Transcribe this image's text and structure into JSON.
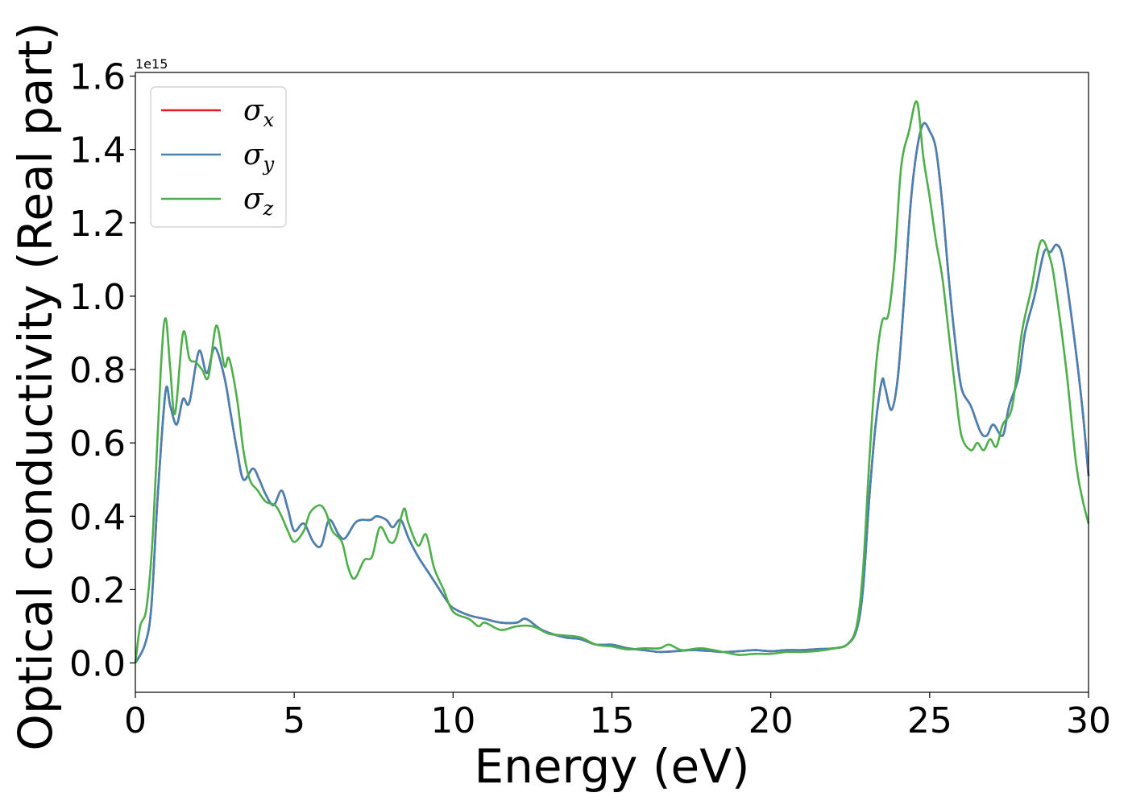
{
  "chart_data": {
    "type": "line",
    "xlabel": "Energy (eV)",
    "ylabel": "Optical conductivity (Real part)",
    "y_offset_label": "1e15",
    "xlim": [
      0,
      30
    ],
    "ylim": [
      -0.08,
      1.61
    ],
    "x_ticks": [
      0,
      5,
      10,
      15,
      20,
      25,
      30
    ],
    "x_tick_labels": [
      "0",
      "5",
      "10",
      "15",
      "20",
      "25",
      "30"
    ],
    "y_ticks": [
      0.0,
      0.2,
      0.4,
      0.6,
      0.8,
      1.0,
      1.2,
      1.4,
      1.6
    ],
    "y_tick_labels": [
      "0.0",
      "0.2",
      "0.4",
      "0.6",
      "0.8",
      "1.0",
      "1.2",
      "1.4",
      "1.6"
    ],
    "grid": false,
    "legend_position": "top-left",
    "series": [
      {
        "name": "σx",
        "legend_base": "σ",
        "legend_sub": "x",
        "color": "#e41a1c",
        "points": [
          [
            0,
            0.0
          ],
          [
            0.3,
            0.05
          ],
          [
            0.5,
            0.15
          ],
          [
            0.7,
            0.45
          ],
          [
            0.95,
            0.74
          ],
          [
            1.1,
            0.7
          ],
          [
            1.3,
            0.65
          ],
          [
            1.5,
            0.72
          ],
          [
            1.7,
            0.71
          ],
          [
            2.0,
            0.85
          ],
          [
            2.25,
            0.79
          ],
          [
            2.5,
            0.86
          ],
          [
            2.8,
            0.78
          ],
          [
            3.0,
            0.68
          ],
          [
            3.2,
            0.58
          ],
          [
            3.4,
            0.5
          ],
          [
            3.7,
            0.53
          ],
          [
            3.9,
            0.5
          ],
          [
            4.1,
            0.46
          ],
          [
            4.35,
            0.43
          ],
          [
            4.6,
            0.47
          ],
          [
            4.8,
            0.42
          ],
          [
            5.0,
            0.36
          ],
          [
            5.3,
            0.38
          ],
          [
            5.6,
            0.33
          ],
          [
            5.85,
            0.32
          ],
          [
            6.1,
            0.39
          ],
          [
            6.4,
            0.35
          ],
          [
            6.6,
            0.34
          ],
          [
            6.9,
            0.38
          ],
          [
            7.1,
            0.39
          ],
          [
            7.4,
            0.39
          ],
          [
            7.6,
            0.4
          ],
          [
            7.9,
            0.39
          ],
          [
            8.1,
            0.37
          ],
          [
            8.35,
            0.39
          ],
          [
            8.6,
            0.34
          ],
          [
            8.9,
            0.29
          ],
          [
            9.2,
            0.25
          ],
          [
            9.5,
            0.21
          ],
          [
            9.8,
            0.17
          ],
          [
            10.0,
            0.15
          ],
          [
            10.5,
            0.13
          ],
          [
            11.0,
            0.12
          ],
          [
            11.5,
            0.11
          ],
          [
            12.0,
            0.11
          ],
          [
            12.3,
            0.12
          ],
          [
            12.8,
            0.09
          ],
          [
            13.5,
            0.07
          ],
          [
            14.0,
            0.065
          ],
          [
            14.5,
            0.05
          ],
          [
            15.0,
            0.05
          ],
          [
            15.5,
            0.04
          ],
          [
            16.0,
            0.035
          ],
          [
            16.5,
            0.03
          ],
          [
            17.0,
            0.032
          ],
          [
            17.5,
            0.035
          ],
          [
            18.0,
            0.033
          ],
          [
            18.5,
            0.03
          ],
          [
            19.0,
            0.032
          ],
          [
            19.5,
            0.035
          ],
          [
            20.0,
            0.032
          ],
          [
            20.5,
            0.035
          ],
          [
            21.0,
            0.035
          ],
          [
            21.5,
            0.038
          ],
          [
            22.0,
            0.04
          ],
          [
            22.4,
            0.05
          ],
          [
            22.7,
            0.09
          ],
          [
            22.9,
            0.2
          ],
          [
            23.1,
            0.45
          ],
          [
            23.3,
            0.65
          ],
          [
            23.5,
            0.77
          ],
          [
            23.6,
            0.75
          ],
          [
            23.8,
            0.69
          ],
          [
            24.0,
            0.78
          ],
          [
            24.2,
            1.0
          ],
          [
            24.4,
            1.25
          ],
          [
            24.6,
            1.4
          ],
          [
            24.8,
            1.47
          ],
          [
            25.0,
            1.45
          ],
          [
            25.2,
            1.4
          ],
          [
            25.4,
            1.25
          ],
          [
            25.6,
            1.05
          ],
          [
            25.8,
            0.88
          ],
          [
            26.0,
            0.75
          ],
          [
            26.3,
            0.7
          ],
          [
            26.6,
            0.63
          ],
          [
            26.8,
            0.62
          ],
          [
            27.0,
            0.65
          ],
          [
            27.3,
            0.62
          ],
          [
            27.5,
            0.7
          ],
          [
            27.8,
            0.78
          ],
          [
            28.0,
            0.9
          ],
          [
            28.3,
            1.0
          ],
          [
            28.6,
            1.12
          ],
          [
            28.8,
            1.12
          ],
          [
            29.0,
            1.14
          ],
          [
            29.2,
            1.1
          ],
          [
            29.5,
            0.92
          ],
          [
            29.8,
            0.7
          ],
          [
            30.0,
            0.51
          ]
        ]
      },
      {
        "name": "σy",
        "legend_base": "σ",
        "legend_sub": "y",
        "color": "#4682b4",
        "points": [
          [
            0,
            0.0
          ],
          [
            0.3,
            0.05
          ],
          [
            0.5,
            0.15
          ],
          [
            0.7,
            0.45
          ],
          [
            0.95,
            0.74
          ],
          [
            1.1,
            0.7
          ],
          [
            1.3,
            0.65
          ],
          [
            1.5,
            0.72
          ],
          [
            1.7,
            0.71
          ],
          [
            2.0,
            0.85
          ],
          [
            2.25,
            0.79
          ],
          [
            2.5,
            0.86
          ],
          [
            2.8,
            0.78
          ],
          [
            3.0,
            0.68
          ],
          [
            3.2,
            0.58
          ],
          [
            3.4,
            0.5
          ],
          [
            3.7,
            0.53
          ],
          [
            3.9,
            0.5
          ],
          [
            4.1,
            0.46
          ],
          [
            4.35,
            0.43
          ],
          [
            4.6,
            0.47
          ],
          [
            4.8,
            0.42
          ],
          [
            5.0,
            0.36
          ],
          [
            5.3,
            0.38
          ],
          [
            5.6,
            0.33
          ],
          [
            5.85,
            0.32
          ],
          [
            6.1,
            0.39
          ],
          [
            6.4,
            0.35
          ],
          [
            6.6,
            0.34
          ],
          [
            6.9,
            0.38
          ],
          [
            7.1,
            0.39
          ],
          [
            7.4,
            0.39
          ],
          [
            7.6,
            0.4
          ],
          [
            7.9,
            0.39
          ],
          [
            8.1,
            0.37
          ],
          [
            8.35,
            0.39
          ],
          [
            8.6,
            0.34
          ],
          [
            8.9,
            0.29
          ],
          [
            9.2,
            0.25
          ],
          [
            9.5,
            0.21
          ],
          [
            9.8,
            0.17
          ],
          [
            10.0,
            0.15
          ],
          [
            10.5,
            0.13
          ],
          [
            11.0,
            0.12
          ],
          [
            11.5,
            0.11
          ],
          [
            12.0,
            0.11
          ],
          [
            12.3,
            0.12
          ],
          [
            12.8,
            0.09
          ],
          [
            13.5,
            0.07
          ],
          [
            14.0,
            0.065
          ],
          [
            14.5,
            0.05
          ],
          [
            15.0,
            0.05
          ],
          [
            15.5,
            0.04
          ],
          [
            16.0,
            0.035
          ],
          [
            16.5,
            0.03
          ],
          [
            17.0,
            0.032
          ],
          [
            17.5,
            0.035
          ],
          [
            18.0,
            0.033
          ],
          [
            18.5,
            0.03
          ],
          [
            19.0,
            0.032
          ],
          [
            19.5,
            0.035
          ],
          [
            20.0,
            0.032
          ],
          [
            20.5,
            0.035
          ],
          [
            21.0,
            0.035
          ],
          [
            21.5,
            0.038
          ],
          [
            22.0,
            0.04
          ],
          [
            22.4,
            0.05
          ],
          [
            22.7,
            0.09
          ],
          [
            22.9,
            0.2
          ],
          [
            23.1,
            0.45
          ],
          [
            23.3,
            0.65
          ],
          [
            23.5,
            0.77
          ],
          [
            23.6,
            0.75
          ],
          [
            23.8,
            0.69
          ],
          [
            24.0,
            0.78
          ],
          [
            24.2,
            1.0
          ],
          [
            24.4,
            1.25
          ],
          [
            24.6,
            1.4
          ],
          [
            24.8,
            1.47
          ],
          [
            25.0,
            1.45
          ],
          [
            25.2,
            1.4
          ],
          [
            25.4,
            1.25
          ],
          [
            25.6,
            1.05
          ],
          [
            25.8,
            0.88
          ],
          [
            26.0,
            0.75
          ],
          [
            26.3,
            0.7
          ],
          [
            26.6,
            0.63
          ],
          [
            26.8,
            0.62
          ],
          [
            27.0,
            0.65
          ],
          [
            27.3,
            0.62
          ],
          [
            27.5,
            0.7
          ],
          [
            27.8,
            0.78
          ],
          [
            28.0,
            0.9
          ],
          [
            28.3,
            1.0
          ],
          [
            28.6,
            1.12
          ],
          [
            28.8,
            1.12
          ],
          [
            29.0,
            1.14
          ],
          [
            29.2,
            1.1
          ],
          [
            29.5,
            0.92
          ],
          [
            29.8,
            0.7
          ],
          [
            30.0,
            0.51
          ]
        ]
      },
      {
        "name": "σz",
        "legend_base": "σ",
        "legend_sub": "z",
        "color": "#4daf4a",
        "points": [
          [
            0,
            0.0
          ],
          [
            0.15,
            0.1
          ],
          [
            0.35,
            0.15
          ],
          [
            0.55,
            0.35
          ],
          [
            0.8,
            0.8
          ],
          [
            0.95,
            0.94
          ],
          [
            1.1,
            0.8
          ],
          [
            1.25,
            0.68
          ],
          [
            1.5,
            0.9
          ],
          [
            1.7,
            0.83
          ],
          [
            1.9,
            0.82
          ],
          [
            2.1,
            0.8
          ],
          [
            2.3,
            0.78
          ],
          [
            2.55,
            0.92
          ],
          [
            2.8,
            0.81
          ],
          [
            2.95,
            0.83
          ],
          [
            3.2,
            0.72
          ],
          [
            3.4,
            0.58
          ],
          [
            3.6,
            0.5
          ],
          [
            3.85,
            0.47
          ],
          [
            4.1,
            0.44
          ],
          [
            4.4,
            0.43
          ],
          [
            4.6,
            0.4
          ],
          [
            4.8,
            0.36
          ],
          [
            5.0,
            0.33
          ],
          [
            5.3,
            0.36
          ],
          [
            5.5,
            0.41
          ],
          [
            5.8,
            0.43
          ],
          [
            6.0,
            0.41
          ],
          [
            6.2,
            0.36
          ],
          [
            6.5,
            0.33
          ],
          [
            6.7,
            0.26
          ],
          [
            6.9,
            0.23
          ],
          [
            7.2,
            0.28
          ],
          [
            7.45,
            0.29
          ],
          [
            7.7,
            0.37
          ],
          [
            8.0,
            0.33
          ],
          [
            8.2,
            0.34
          ],
          [
            8.45,
            0.42
          ],
          [
            8.6,
            0.38
          ],
          [
            8.9,
            0.32
          ],
          [
            9.15,
            0.35
          ],
          [
            9.4,
            0.26
          ],
          [
            9.7,
            0.2
          ],
          [
            10.0,
            0.14
          ],
          [
            10.5,
            0.12
          ],
          [
            10.8,
            0.1
          ],
          [
            11.0,
            0.11
          ],
          [
            11.5,
            0.09
          ],
          [
            12.0,
            0.1
          ],
          [
            12.5,
            0.1
          ],
          [
            13.0,
            0.08
          ],
          [
            13.5,
            0.075
          ],
          [
            14.0,
            0.07
          ],
          [
            14.5,
            0.05
          ],
          [
            15.0,
            0.045
          ],
          [
            15.5,
            0.037
          ],
          [
            16.0,
            0.04
          ],
          [
            16.5,
            0.04
          ],
          [
            16.8,
            0.05
          ],
          [
            17.2,
            0.035
          ],
          [
            17.8,
            0.04
          ],
          [
            18.5,
            0.03
          ],
          [
            19.0,
            0.022
          ],
          [
            19.5,
            0.025
          ],
          [
            20.0,
            0.025
          ],
          [
            20.5,
            0.03
          ],
          [
            21.0,
            0.03
          ],
          [
            21.5,
            0.033
          ],
          [
            22.0,
            0.04
          ],
          [
            22.4,
            0.05
          ],
          [
            22.7,
            0.1
          ],
          [
            22.9,
            0.25
          ],
          [
            23.1,
            0.55
          ],
          [
            23.3,
            0.8
          ],
          [
            23.5,
            0.93
          ],
          [
            23.7,
            0.95
          ],
          [
            23.9,
            1.1
          ],
          [
            24.1,
            1.35
          ],
          [
            24.35,
            1.45
          ],
          [
            24.6,
            1.53
          ],
          [
            24.8,
            1.38
          ],
          [
            25.0,
            1.27
          ],
          [
            25.2,
            1.15
          ],
          [
            25.4,
            1.05
          ],
          [
            25.6,
            0.9
          ],
          [
            25.8,
            0.75
          ],
          [
            26.0,
            0.62
          ],
          [
            26.3,
            0.58
          ],
          [
            26.5,
            0.6
          ],
          [
            26.7,
            0.58
          ],
          [
            26.9,
            0.61
          ],
          [
            27.1,
            0.59
          ],
          [
            27.3,
            0.65
          ],
          [
            27.6,
            0.7
          ],
          [
            27.9,
            0.9
          ],
          [
            28.2,
            1.02
          ],
          [
            28.5,
            1.15
          ],
          [
            28.8,
            1.1
          ],
          [
            29.0,
            1.0
          ],
          [
            29.3,
            0.8
          ],
          [
            29.6,
            0.55
          ],
          [
            29.8,
            0.45
          ],
          [
            30.0,
            0.38
          ]
        ]
      }
    ]
  }
}
